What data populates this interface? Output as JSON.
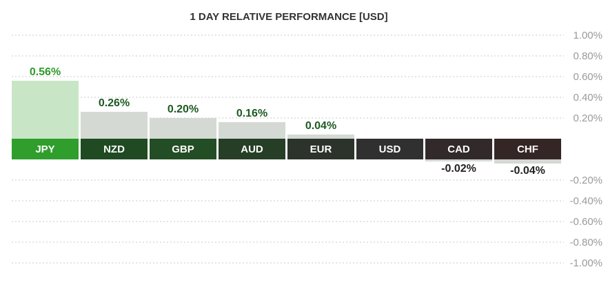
{
  "chart_data": {
    "type": "bar",
    "title": "1 DAY RELATIVE PERFORMANCE  [USD]",
    "categories": [
      "JPY",
      "NZD",
      "GBP",
      "AUD",
      "EUR",
      "USD",
      "CAD",
      "CHF"
    ],
    "values": [
      0.56,
      0.26,
      0.2,
      0.16,
      0.04,
      0.0,
      -0.02,
      -0.04
    ],
    "value_labels": [
      "0.56%",
      "0.26%",
      "0.20%",
      "0.16%",
      "0.04%",
      "",
      "-0.02%",
      "-0.04%"
    ],
    "yticks_positive": [
      "1.00%",
      "0.80%",
      "0.60%",
      "0.40%",
      "0.20%"
    ],
    "yticks_negative": [
      "-0.20%",
      "-0.40%",
      "-0.60%",
      "-0.80%",
      "-1.00%"
    ],
    "ylim": [
      -1.0,
      1.0
    ],
    "grid": true,
    "colors": {
      "label_bg": [
        "#2f9e2c",
        "#1f4a22",
        "#234d24",
        "#263e26",
        "#2b332b",
        "#303030",
        "#322a2a",
        "#352626"
      ],
      "bar_fill": [
        "#c8e6c6",
        "#d4d9d4",
        "#d4d9d4",
        "#d4d9d4",
        "#d4d9d4",
        "#d4d9d4",
        "#d4d9d4",
        "#d4d9d4"
      ],
      "label_text": [
        "#2e9a2a",
        "#1d5a22",
        "#1d5a22",
        "#1d5a22",
        "#1d5a22",
        "#222222",
        "#222222",
        "#222222"
      ]
    }
  }
}
